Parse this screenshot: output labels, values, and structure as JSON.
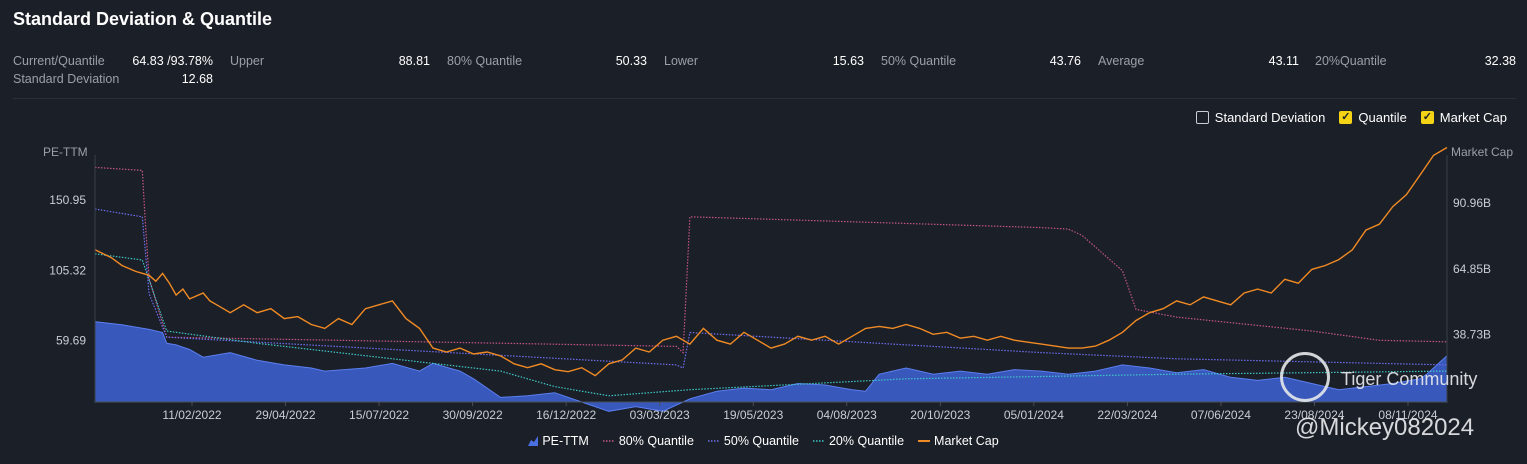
{
  "title": "Standard Deviation & Quantile",
  "stats": [
    {
      "label": "Current/Quantile",
      "value": "64.83 /93.78%"
    },
    {
      "label": "Upper",
      "value": "88.81"
    },
    {
      "label": "80% Quantile",
      "value": "50.33"
    },
    {
      "label": "Lower",
      "value": "15.63"
    },
    {
      "label": "50% Quantile",
      "value": "43.76"
    },
    {
      "label": "Average",
      "value": "43.11"
    },
    {
      "label": "20%Quantile",
      "value": "32.38"
    },
    {
      "label": "Standard Deviation",
      "value": "12.68"
    }
  ],
  "toggles": [
    {
      "label": "Standard Deviation",
      "checked": false
    },
    {
      "label": "Quantile",
      "checked": true
    },
    {
      "label": "Market Cap",
      "checked": true
    }
  ],
  "watermark": {
    "brand": "Tiger Community",
    "user": "@Mickey082024"
  },
  "chart_data": {
    "type": "area",
    "ylabel": "PE-TTM",
    "y2label": "Market Cap",
    "yticks": [
      "150.95",
      "105.32",
      "59.69"
    ],
    "y2ticks": [
      "90.96B",
      "64.85B",
      "38.73B"
    ],
    "xticks": [
      "11/02/2022",
      "29/04/2022",
      "15/07/2022",
      "30/09/2022",
      "16/12/2022",
      "03/03/2023",
      "19/05/2023",
      "04/08/2023",
      "20/10/2023",
      "05/01/2024",
      "22/03/2024",
      "07/06/2024",
      "23/08/2024",
      "08/11/2024"
    ],
    "x_start": "2021-12-01",
    "x_end": "2024-11-22",
    "y_axis": {
      "ticks": [
        150.95,
        105.32,
        59.69
      ],
      "min": 20,
      "max": 180
    },
    "y2_axis": {
      "ticks": [
        90.96,
        64.85,
        38.73
      ],
      "min": 12,
      "max": 110
    },
    "series": [
      {
        "name": "PE-TTM",
        "color": "#3d63d6",
        "values": [
          [
            0,
            72
          ],
          [
            0.02,
            70
          ],
          [
            0.04,
            67
          ],
          [
            0.05,
            65
          ],
          [
            0.053,
            58
          ],
          [
            0.06,
            57
          ],
          [
            0.07,
            54
          ],
          [
            0.08,
            49
          ],
          [
            0.1,
            52
          ],
          [
            0.12,
            47
          ],
          [
            0.14,
            44
          ],
          [
            0.16,
            42
          ],
          [
            0.17,
            40
          ],
          [
            0.2,
            42
          ],
          [
            0.22,
            45
          ],
          [
            0.24,
            40
          ],
          [
            0.25,
            45
          ],
          [
            0.27,
            40
          ],
          [
            0.28,
            35
          ],
          [
            0.3,
            23
          ],
          [
            0.32,
            24
          ],
          [
            0.34,
            26
          ],
          [
            0.36,
            20
          ],
          [
            0.38,
            14
          ],
          [
            0.4,
            17
          ],
          [
            0.42,
            14
          ],
          [
            0.44,
            22
          ],
          [
            0.46,
            27
          ],
          [
            0.48,
            29
          ],
          [
            0.5,
            28
          ],
          [
            0.52,
            32
          ],
          [
            0.54,
            31
          ],
          [
            0.56,
            28
          ],
          [
            0.57,
            27
          ],
          [
            0.58,
            38
          ],
          [
            0.6,
            42
          ],
          [
            0.62,
            38
          ],
          [
            0.64,
            40
          ],
          [
            0.66,
            38
          ],
          [
            0.68,
            41
          ],
          [
            0.7,
            40
          ],
          [
            0.72,
            38
          ],
          [
            0.74,
            40
          ],
          [
            0.76,
            44
          ],
          [
            0.78,
            42
          ],
          [
            0.8,
            39
          ],
          [
            0.82,
            41
          ],
          [
            0.84,
            36
          ],
          [
            0.86,
            34
          ],
          [
            0.88,
            36
          ],
          [
            0.9,
            32
          ],
          [
            0.92,
            28
          ],
          [
            0.94,
            30
          ],
          [
            0.96,
            32
          ],
          [
            0.98,
            35
          ],
          [
            0.985,
            38
          ],
          [
            0.99,
            42
          ],
          [
            0.995,
            46
          ],
          [
            1,
            50
          ]
        ],
        "scale": "pct"
      },
      {
        "name": "80% Quantile",
        "color": "#c4558c"
      },
      {
        "name": "50% Quantile",
        "color": "#6f6ef0"
      },
      {
        "name": "20% Quantile",
        "color": "#3ec7c7"
      },
      {
        "name": "Market Cap",
        "color": "#f08a24"
      }
    ]
  }
}
